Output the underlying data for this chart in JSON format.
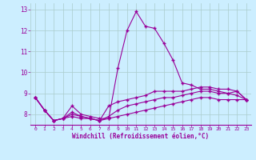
{
  "x": [
    0,
    1,
    2,
    3,
    4,
    5,
    6,
    7,
    8,
    9,
    10,
    11,
    12,
    13,
    14,
    15,
    16,
    17,
    18,
    19,
    20,
    21,
    22,
    23
  ],
  "line1": [
    8.8,
    8.2,
    7.7,
    7.8,
    8.4,
    8.0,
    7.9,
    7.8,
    7.8,
    10.2,
    12.0,
    12.9,
    12.2,
    12.1,
    11.4,
    10.6,
    9.5,
    9.4,
    9.2,
    9.2,
    9.1,
    9.0,
    9.1,
    8.7
  ],
  "line2": [
    8.8,
    8.2,
    7.7,
    7.8,
    8.1,
    7.9,
    7.8,
    7.7,
    8.4,
    8.6,
    8.7,
    8.8,
    8.9,
    9.1,
    9.1,
    9.1,
    9.1,
    9.2,
    9.3,
    9.3,
    9.2,
    9.2,
    9.1,
    8.7
  ],
  "line3": [
    8.8,
    8.2,
    7.7,
    7.8,
    8.0,
    7.9,
    7.8,
    7.7,
    7.9,
    8.2,
    8.4,
    8.5,
    8.6,
    8.7,
    8.8,
    8.8,
    8.9,
    9.0,
    9.1,
    9.1,
    9.0,
    9.0,
    8.9,
    8.7
  ],
  "line4": [
    8.8,
    8.2,
    7.7,
    7.8,
    7.9,
    7.8,
    7.8,
    7.7,
    7.8,
    7.9,
    8.0,
    8.1,
    8.2,
    8.3,
    8.4,
    8.5,
    8.6,
    8.7,
    8.8,
    8.8,
    8.7,
    8.7,
    8.7,
    8.7
  ],
  "line_color": "#990099",
  "bg_color": "#cceeff",
  "grid_color": "#aacccc",
  "ylim": [
    7.5,
    13.3
  ],
  "xlim": [
    -0.5,
    23.5
  ],
  "yticks": [
    8,
    9,
    10,
    11,
    12,
    13
  ],
  "xticks": [
    0,
    1,
    2,
    3,
    4,
    5,
    6,
    7,
    8,
    9,
    10,
    11,
    12,
    13,
    14,
    15,
    16,
    17,
    18,
    19,
    20,
    21,
    22,
    23
  ],
  "xlabel": "Windchill (Refroidissement éolien,°C)",
  "xlabel_color": "#990099",
  "tick_color": "#990099"
}
